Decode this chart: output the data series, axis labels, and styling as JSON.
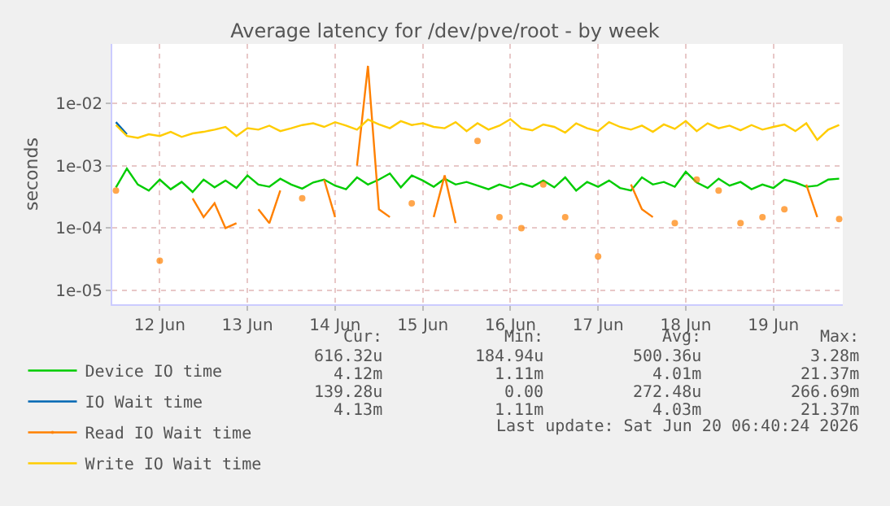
{
  "chart_data": {
    "type": "line",
    "title": "Average latency for /dev/pve/root - by week",
    "ylabel": "seconds",
    "x": [
      "2026-06-12T00:00",
      "2026-06-12T03:00",
      "2026-06-12T06:00",
      "2026-06-12T09:00",
      "2026-06-12T12:00",
      "2026-06-12T15:00",
      "2026-06-12T18:00",
      "2026-06-12T21:00",
      "2026-06-13T00:00",
      "2026-06-13T03:00",
      "2026-06-13T06:00",
      "2026-06-13T09:00",
      "2026-06-13T12:00",
      "2026-06-13T15:00",
      "2026-06-13T18:00",
      "2026-06-13T21:00",
      "2026-06-14T00:00",
      "2026-06-14T03:00",
      "2026-06-14T06:00",
      "2026-06-14T09:00",
      "2026-06-14T12:00",
      "2026-06-14T15:00",
      "2026-06-14T18:00",
      "2026-06-14T21:00",
      "2026-06-15T00:00",
      "2026-06-15T03:00",
      "2026-06-15T06:00",
      "2026-06-15T09:00",
      "2026-06-15T12:00",
      "2026-06-15T15:00",
      "2026-06-15T18:00",
      "2026-06-15T21:00",
      "2026-06-16T00:00",
      "2026-06-16T03:00",
      "2026-06-16T06:00",
      "2026-06-16T09:00",
      "2026-06-16T12:00",
      "2026-06-16T15:00",
      "2026-06-16T18:00",
      "2026-06-16T21:00",
      "2026-06-17T00:00",
      "2026-06-17T03:00",
      "2026-06-17T06:00",
      "2026-06-17T09:00",
      "2026-06-17T12:00",
      "2026-06-17T15:00",
      "2026-06-17T18:00",
      "2026-06-17T21:00",
      "2026-06-18T00:00",
      "2026-06-18T03:00",
      "2026-06-18T06:00",
      "2026-06-18T09:00",
      "2026-06-18T12:00",
      "2026-06-18T15:00",
      "2026-06-18T18:00",
      "2026-06-18T21:00",
      "2026-06-19T00:00",
      "2026-06-19T03:00",
      "2026-06-19T06:00",
      "2026-06-19T09:00",
      "2026-06-19T12:00",
      "2026-06-19T15:00",
      "2026-06-19T18:00",
      "2026-06-19T21:00",
      "2026-06-20T00:00",
      "2026-06-20T03:00",
      "2026-06-20T06:00"
    ],
    "series": [
      {
        "name": "Device IO time",
        "color": "#00cc00",
        "values": [
          0.00045,
          0.0009,
          0.0005,
          0.0004,
          0.0006,
          0.00042,
          0.00055,
          0.00038,
          0.0006,
          0.00045,
          0.00058,
          0.00044,
          0.0007,
          0.0005,
          0.00046,
          0.00062,
          0.0005,
          0.00043,
          0.00054,
          0.0006,
          0.00048,
          0.00042,
          0.00065,
          0.0005,
          0.0006,
          0.00075,
          0.00045,
          0.0007,
          0.00058,
          0.00046,
          0.00062,
          0.0005,
          0.00055,
          0.00048,
          0.00042,
          0.0005,
          0.00044,
          0.00052,
          0.00046,
          0.00058,
          0.00045,
          0.00065,
          0.0004,
          0.00055,
          0.00046,
          0.00058,
          0.00044,
          0.0004,
          0.00065,
          0.0005,
          0.00055,
          0.00046,
          0.0008,
          0.00054,
          0.00044,
          0.00062,
          0.00048,
          0.00055,
          0.00042,
          0.0005,
          0.00044,
          0.0006,
          0.00054,
          0.00046,
          0.00048,
          0.0006,
          0.00062
        ]
      },
      {
        "name": "IO Wait time",
        "color": "#0066b3",
        "values": [
          0.005,
          0.0032,
          null,
          null,
          null,
          null,
          null,
          null,
          null,
          null,
          null,
          null,
          null,
          null,
          null,
          null,
          null,
          null,
          null,
          null,
          null,
          null,
          null,
          null,
          null,
          null,
          null,
          null,
          null,
          null,
          null,
          null,
          null,
          null,
          null,
          null,
          null,
          null,
          null,
          null,
          null,
          null,
          null,
          null,
          null,
          null,
          null,
          null,
          null,
          null,
          null,
          null,
          null,
          null,
          null,
          null,
          null,
          null,
          null,
          null,
          null,
          null,
          null,
          null,
          null,
          null,
          null
        ]
      },
      {
        "name": "Read IO Wait time",
        "color": "#ff8000",
        "values": [
          0.0004,
          null,
          null,
          null,
          3e-05,
          null,
          null,
          0.0003,
          0.00015,
          0.00025,
          0.0001,
          0.00012,
          null,
          0.0002,
          0.00012,
          0.0004,
          null,
          0.0003,
          null,
          0.0006,
          0.00015,
          null,
          0.001,
          0.04,
          0.0002,
          0.00015,
          null,
          0.00025,
          null,
          0.00015,
          0.0007,
          0.00012,
          null,
          0.0025,
          null,
          0.00015,
          null,
          0.0001,
          null,
          0.0005,
          null,
          0.00015,
          null,
          null,
          3.5e-05,
          null,
          null,
          0.0005,
          0.0002,
          0.00015,
          null,
          0.00012,
          null,
          0.0006,
          null,
          0.0004,
          null,
          0.00012,
          null,
          0.00015,
          null,
          0.0002,
          null,
          0.0005,
          0.00015,
          null,
          0.00014
        ]
      },
      {
        "name": "Write IO Wait time",
        "color": "#ffcc00",
        "values": [
          0.0045,
          0.003,
          0.0028,
          0.0032,
          0.003,
          0.0035,
          0.0029,
          0.0033,
          0.0035,
          0.0038,
          0.0042,
          0.003,
          0.004,
          0.0038,
          0.0044,
          0.0036,
          0.004,
          0.0045,
          0.0048,
          0.0042,
          0.005,
          0.0044,
          0.0038,
          0.0055,
          0.0046,
          0.004,
          0.0052,
          0.0045,
          0.0048,
          0.0042,
          0.004,
          0.005,
          0.0036,
          0.0048,
          0.0038,
          0.0044,
          0.0056,
          0.004,
          0.0037,
          0.0046,
          0.0042,
          0.0034,
          0.0048,
          0.004,
          0.0036,
          0.005,
          0.0042,
          0.0038,
          0.0044,
          0.0035,
          0.0046,
          0.0039,
          0.0052,
          0.0036,
          0.0048,
          0.004,
          0.0044,
          0.0037,
          0.0045,
          0.0038,
          0.0042,
          0.0046,
          0.0036,
          0.0048,
          0.0026,
          0.0038,
          0.0045
        ]
      }
    ],
    "xlim": [
      "2026-06-11T23:00",
      "2026-06-20T07:00"
    ],
    "xticks": [
      {
        "value": "2026-06-12T12:00",
        "label": "12 Jun"
      },
      {
        "value": "2026-06-13T12:00",
        "label": "13 Jun"
      },
      {
        "value": "2026-06-14T12:00",
        "label": "14 Jun"
      },
      {
        "value": "2026-06-15T12:00",
        "label": "15 Jun"
      },
      {
        "value": "2026-06-16T12:00",
        "label": "16 Jun"
      },
      {
        "value": "2026-06-17T12:00",
        "label": "17 Jun"
      },
      {
        "value": "2026-06-18T12:00",
        "label": "18 Jun"
      },
      {
        "value": "2026-06-19T12:00",
        "label": "19 Jun"
      }
    ],
    "ylim": [
      6e-06,
      0.09
    ],
    "yticks": [
      {
        "value": 1e-05,
        "label": "1e-05"
      },
      {
        "value": 0.0001,
        "label": "1e-04"
      },
      {
        "value": 0.001,
        "label": "1e-03"
      },
      {
        "value": 0.01,
        "label": "1e-02"
      }
    ],
    "log": "y",
    "grid": true,
    "legend": "bottom",
    "annotations": [
      "Cur:",
      "Min:",
      "Avg:",
      "Max:",
      "616.32u",
      "184.94u",
      "500.36u",
      "3.28m",
      "4.12m",
      "1.11m",
      "4.01m",
      "21.37m",
      "139.28u",
      "0.00",
      "272.48u",
      "266.69m",
      "4.13m",
      "1.11m",
      "4.03m",
      "21.37m",
      "Last update: Sat Jun 20 06:40:24 2026"
    ]
  }
}
